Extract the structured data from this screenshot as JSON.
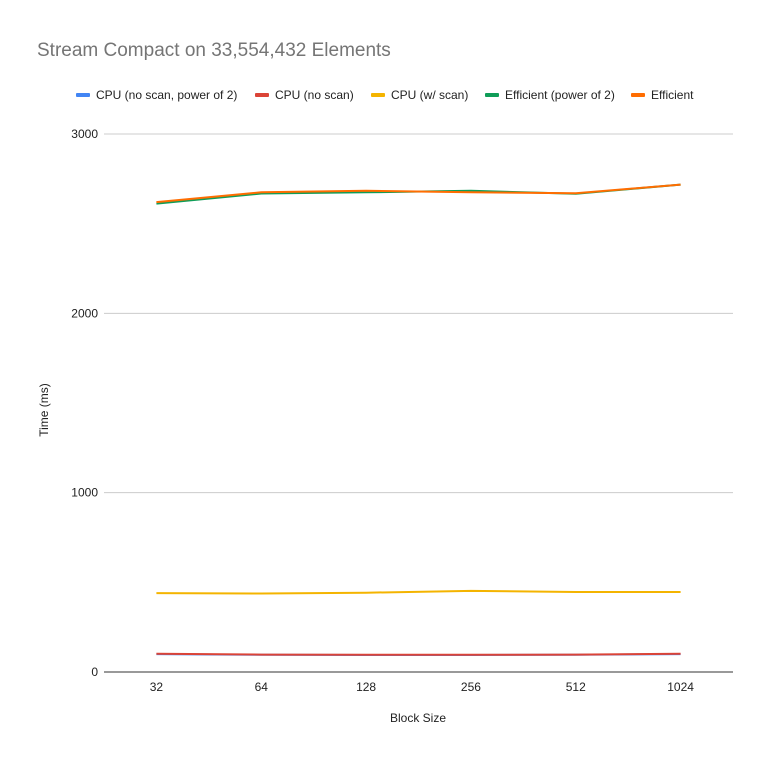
{
  "chart_data": {
    "type": "line",
    "title": "Stream Compact on 33,554,432 Elements",
    "xlabel": "Block Size",
    "ylabel": "Time (ms)",
    "categories": [
      "32",
      "64",
      "128",
      "256",
      "512",
      "1024"
    ],
    "ylim": [
      0,
      3000
    ],
    "yticks": [
      "0",
      "1000",
      "2000",
      "3000"
    ],
    "grid": true,
    "legend_position": "top",
    "series": [
      {
        "name": "CPU (no scan, power of 2)",
        "color": "#4285f4",
        "values": [
          100,
          96,
          95,
          95,
          96,
          100
        ]
      },
      {
        "name": "CPU (no scan)",
        "color": "#db4437",
        "values": [
          102,
          97,
          96,
          96,
          97,
          102
        ]
      },
      {
        "name": "CPU (w/ scan)",
        "color": "#f4b400",
        "values": [
          440,
          438,
          442,
          452,
          446,
          446
        ]
      },
      {
        "name": "Efficient (power of 2)",
        "color": "#0f9d58",
        "values": [
          2612,
          2668,
          2675,
          2683,
          2667,
          2718
        ]
      },
      {
        "name": "Efficient",
        "color": "#ff6d01",
        "values": [
          2620,
          2675,
          2683,
          2675,
          2670,
          2718
        ]
      }
    ]
  }
}
